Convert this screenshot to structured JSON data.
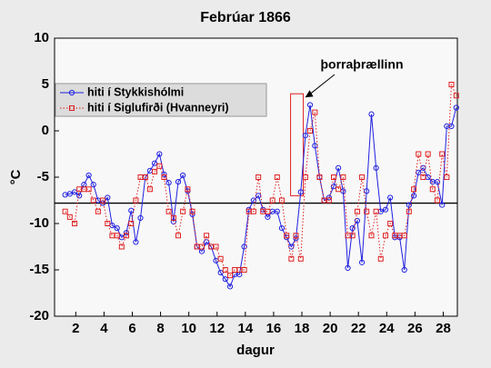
{
  "chart_data": {
    "type": "line",
    "title": "Febrúar 1866",
    "xlabel": "dagur",
    "ylabel": "°C",
    "annotation": "þorraþrællinn",
    "highlight": {
      "x": [
        17.2,
        18.1
      ],
      "y": [
        -7,
        4
      ]
    },
    "hline": -7.8,
    "xlim": [
      0.5,
      29
    ],
    "ylim": [
      -20,
      10
    ],
    "xticks": [
      2,
      4,
      6,
      8,
      10,
      12,
      14,
      16,
      18,
      20,
      22,
      24,
      26,
      28
    ],
    "yticks": [
      -20,
      -15,
      -10,
      -5,
      0,
      5,
      10
    ],
    "legend": "top-left",
    "x": [
      1.25,
      1.58,
      1.92,
      2.25,
      2.58,
      2.92,
      3.25,
      3.58,
      3.92,
      4.25,
      4.58,
      4.92,
      5.25,
      5.58,
      5.92,
      6.25,
      6.58,
      6.92,
      7.25,
      7.58,
      7.92,
      8.25,
      8.58,
      8.92,
      9.25,
      9.58,
      9.92,
      10.25,
      10.58,
      10.92,
      11.25,
      11.58,
      11.92,
      12.25,
      12.58,
      12.92,
      13.25,
      13.58,
      13.92,
      14.25,
      14.58,
      14.92,
      15.25,
      15.58,
      15.92,
      16.25,
      16.58,
      16.92,
      17.25,
      17.58,
      17.92,
      18.25,
      18.58,
      18.92,
      19.25,
      19.58,
      19.92,
      20.25,
      20.58,
      20.92,
      21.25,
      21.58,
      21.92,
      22.25,
      22.58,
      22.92,
      23.25,
      23.58,
      23.92,
      24.25,
      24.58,
      24.92,
      25.25,
      25.58,
      25.92,
      26.25,
      26.58,
      26.92,
      27.25,
      27.58,
      27.92,
      28.25,
      28.58,
      28.92
    ],
    "series": [
      {
        "name": "hiti í Stykkishólmi",
        "color": "#2020e0",
        "marker": "circle",
        "style": "solid",
        "values": [
          -6.9,
          -6.8,
          -6.6,
          -7.0,
          -5.8,
          -4.8,
          -5.8,
          -7.5,
          -7.8,
          -7.2,
          -10.2,
          -10.5,
          -11.5,
          -11.0,
          -8.6,
          -12.0,
          -9.4,
          -5.0,
          -4.3,
          -3.5,
          -2.5,
          -4.7,
          -5.6,
          -9.8,
          -5.5,
          -4.8,
          -6.5,
          -9.0,
          -12.5,
          -13.0,
          -12.0,
          -12.5,
          -14.0,
          -15.3,
          -16.0,
          -16.8,
          -15.5,
          -15.5,
          -12.5,
          -8.5,
          -7.5,
          -7.0,
          -8.5,
          -9.3,
          -8.7,
          -8.7,
          -10.5,
          -11.5,
          -12.5,
          -11.6,
          -6.6,
          -0.5,
          2.8,
          -1.6,
          -5.0,
          -7.5,
          -7.2,
          -6.0,
          -4.0,
          -6.5,
          -14.8,
          -10.5,
          -9.7,
          -14.2,
          -6.5,
          1.8,
          -4.0,
          -8.7,
          -8.5,
          -7.2,
          -11.5,
          -11.5,
          -15.0,
          -8.0,
          -7.0,
          -4.5,
          -4.0,
          -5.0,
          -5.5,
          -5.5,
          -8.0,
          0.5,
          0.5,
          2.5
        ]
      },
      {
        "name": "hiti í Siglufirði (Hvanneyri)",
        "color": "#e02020",
        "marker": "square",
        "style": "dotted",
        "values": [
          -8.7,
          -9.3,
          -10.0,
          -6.3,
          -6.3,
          -6.3,
          -7.5,
          -8.7,
          -7.5,
          -10.0,
          -11.3,
          -11.3,
          -12.5,
          -11.3,
          -10.0,
          -7.5,
          -5.0,
          -5.0,
          -6.3,
          -4.4,
          -3.8,
          -5.0,
          -8.7,
          -9.4,
          -11.3,
          -8.7,
          -6.3,
          -8.7,
          -12.5,
          -12.5,
          -11.3,
          -12.5,
          -12.5,
          -13.8,
          -15.0,
          -15.6,
          -15.0,
          -15.0,
          -15.0,
          -8.7,
          -8.7,
          -5.0,
          -8.7,
          -8.7,
          -7.5,
          -5.0,
          -7.5,
          -11.3,
          -13.8,
          -11.3,
          -13.8,
          -5.0,
          0.0,
          2.0,
          -5.0,
          -7.5,
          -7.5,
          -5.0,
          -6.3,
          -5.0,
          -11.3,
          -11.3,
          -8.7,
          -5.0,
          -8.7,
          -11.3,
          -8.7,
          -13.8,
          -11.3,
          -10.0,
          -11.3,
          -11.3,
          -11.3,
          -8.7,
          -6.3,
          -2.5,
          -5.0,
          -2.5,
          -6.3,
          -7.5,
          -2.5,
          -5.0,
          5.0,
          3.8
        ]
      }
    ]
  }
}
